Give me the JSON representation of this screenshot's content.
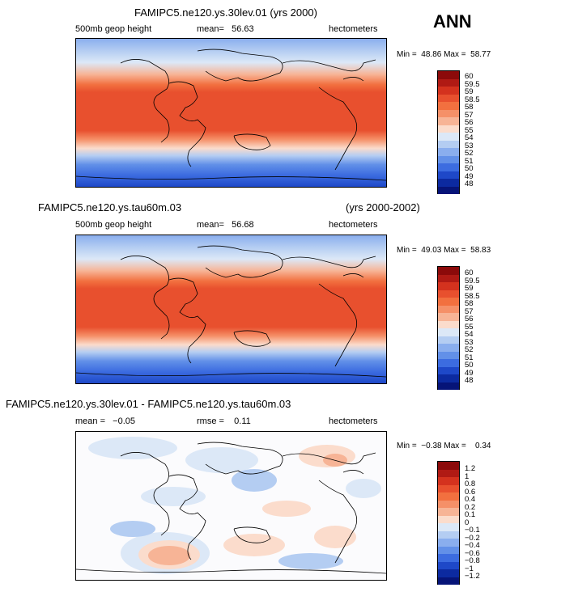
{
  "header": {
    "season": "ANN"
  },
  "panels": [
    {
      "id": "p1",
      "title": "FAMIPC5.ne120.ys.30lev.01 (yrs 2000)",
      "variable": "500mb geop height",
      "mean": "mean=   56.63",
      "units": "hectometers",
      "minmax": "Min =  48.86 Max =  58.77"
    },
    {
      "id": "p2",
      "title": "FAMIPC5.ne120.ys.tau60m.03",
      "years": "(yrs 2000-2002)",
      "variable": "500mb geop height",
      "mean": "mean=   56.68",
      "units": "hectometers",
      "minmax": "Min =  49.03 Max =  58.83"
    },
    {
      "id": "p3",
      "title": "FAMIPC5.ne120.ys.30lev.01 - FAMIPC5.ne120.ys.tau60m.03",
      "mean": "mean =   −0.05",
      "rmse": "rmse =    0.11",
      "units": "hectometers",
      "minmax": "Min =  −0.38 Max =    0.34"
    }
  ],
  "chart_data": [
    {
      "type": "heatmap",
      "title": "FAMIPC5.ne120.ys.30lev.01 (yrs 2000)",
      "variable": "500mb geop height",
      "units": "hectometers",
      "mean": 56.63,
      "min": 48.86,
      "max": 58.77,
      "colorbar": {
        "levels": [
          "60",
          "59.5",
          "59",
          "58.5",
          "58",
          "57",
          "56",
          "55",
          "54",
          "53",
          "52",
          "51",
          "50",
          "49",
          "48"
        ],
        "colors": [
          "#8c0a0a",
          "#b01a14",
          "#d4321e",
          "#e8502e",
          "#f2703f",
          "#f59068",
          "#f7b496",
          "#fbdccc",
          "#dce8f7",
          "#b4cdf2",
          "#8aaeee",
          "#6290e8",
          "#3c6ce0",
          "#1e48c8",
          "#0c2aa0",
          "#061478"
        ]
      }
    },
    {
      "type": "heatmap",
      "title": "FAMIPC5.ne120.ys.tau60m.03",
      "years": "(yrs 2000-2002)",
      "variable": "500mb geop height",
      "units": "hectometers",
      "mean": 56.68,
      "min": 49.03,
      "max": 58.83,
      "colorbar": {
        "levels": [
          "60",
          "59.5",
          "59",
          "58.5",
          "58",
          "57",
          "56",
          "55",
          "54",
          "53",
          "52",
          "51",
          "50",
          "49",
          "48"
        ],
        "colors": [
          "#8c0a0a",
          "#b01a14",
          "#d4321e",
          "#e8502e",
          "#f2703f",
          "#f59068",
          "#f7b496",
          "#fbdccc",
          "#dce8f7",
          "#b4cdf2",
          "#8aaeee",
          "#6290e8",
          "#3c6ce0",
          "#1e48c8",
          "#0c2aa0",
          "#061478"
        ]
      }
    },
    {
      "type": "heatmap",
      "title": "FAMIPC5.ne120.ys.30lev.01 - FAMIPC5.ne120.ys.tau60m.03",
      "units": "hectometers",
      "mean": -0.05,
      "rmse": 0.11,
      "min": -0.38,
      "max": 0.34,
      "colorbar": {
        "levels": [
          "1.2",
          "1",
          "0.8",
          "0.6",
          "0.4",
          "0.2",
          "0.1",
          "0",
          "−0.1",
          "−0.2",
          "−0.4",
          "−0.6",
          "−0.8",
          "−1",
          "−1.2"
        ],
        "colors": [
          "#8c0a0a",
          "#b01a14",
          "#d4321e",
          "#e8502e",
          "#f2703f",
          "#f59068",
          "#f7b496",
          "#fbdccc",
          "#dce8f7",
          "#b4cdf2",
          "#8aaeee",
          "#6290e8",
          "#3c6ce0",
          "#1e48c8",
          "#0c2aa0",
          "#061478"
        ]
      }
    }
  ]
}
